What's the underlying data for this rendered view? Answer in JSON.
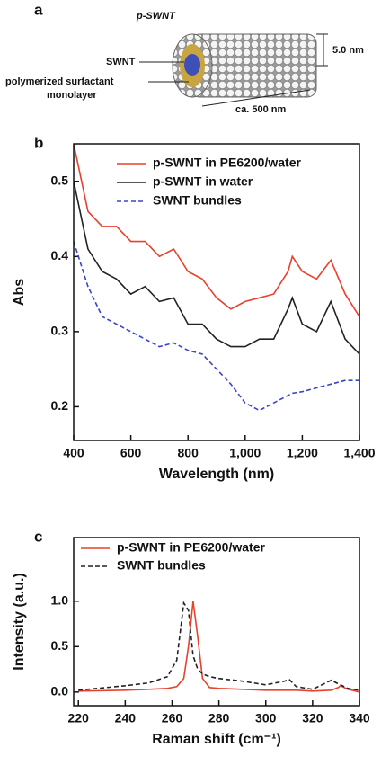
{
  "diagram": {
    "panel_label": "a",
    "title": "p-SWNT",
    "core_label": "SWNT",
    "shell_label_1": "polymerized surfactant",
    "shell_label_2": "monolayer",
    "diameter": "5.0 nm",
    "length": "ca. 500 nm"
  },
  "chart_data": [
    {
      "type": "line",
      "panel_label": "b",
      "xlabel": "Wavelength (nm)",
      "ylabel": "Abs",
      "xlim": [
        400,
        1400
      ],
      "ylim": [
        0.155,
        0.55
      ],
      "xticks": [
        400,
        600,
        800,
        {
          "value": 1000,
          "label": "1,000"
        },
        {
          "value": 1200,
          "label": "1,200"
        },
        {
          "value": 1400,
          "label": "1,400"
        }
      ],
      "yticks": [
        0.2,
        0.3,
        0.4,
        0.5
      ],
      "x": [
        400,
        450,
        500,
        550,
        600,
        650,
        700,
        750,
        800,
        850,
        900,
        950,
        1000,
        1050,
        1100,
        1150,
        1165,
        1200,
        1250,
        1300,
        1350,
        1400
      ],
      "series": [
        {
          "name": "p-SWNT in PE6200/water",
          "color": "#e8412c",
          "dashed": false,
          "values": [
            0.55,
            0.46,
            0.44,
            0.44,
            0.42,
            0.42,
            0.4,
            0.41,
            0.38,
            0.37,
            0.345,
            0.33,
            0.34,
            0.345,
            0.35,
            0.38,
            0.4,
            0.38,
            0.37,
            0.395,
            0.35,
            0.32
          ]
        },
        {
          "name": "p-SWNT in water",
          "color": "#222222",
          "dashed": false,
          "values": [
            0.5,
            0.41,
            0.38,
            0.37,
            0.35,
            0.36,
            0.34,
            0.345,
            0.31,
            0.31,
            0.29,
            0.28,
            0.28,
            0.29,
            0.29,
            0.33,
            0.345,
            0.31,
            0.3,
            0.34,
            0.29,
            0.27
          ]
        },
        {
          "name": "SWNT bundles",
          "color": "#3b45c8",
          "dashed": true,
          "values": [
            0.42,
            0.36,
            0.32,
            0.31,
            0.3,
            0.29,
            0.28,
            0.285,
            0.275,
            0.27,
            0.25,
            0.23,
            0.205,
            0.195,
            0.205,
            0.215,
            0.218,
            0.22,
            0.225,
            0.23,
            0.235,
            0.235
          ]
        }
      ]
    },
    {
      "type": "line",
      "panel_label": "c",
      "xlabel": "Raman shift (cm⁻¹)",
      "ylabel": "Intensity (a.u.)",
      "xlim": [
        218,
        340
      ],
      "ylim": [
        -0.15,
        1.7
      ],
      "xticks": [
        220,
        240,
        260,
        280,
        300,
        320,
        340
      ],
      "yticks": [
        {
          "value": 0,
          "label": "0.0"
        },
        {
          "value": 0.5,
          "label": "0.5"
        },
        {
          "value": 1,
          "label": "1.0"
        }
      ],
      "x": [
        220,
        240,
        250,
        258,
        262,
        265,
        267,
        269,
        271,
        273,
        276,
        280,
        290,
        300,
        308,
        310,
        313,
        320,
        328,
        331,
        332,
        335,
        340
      ],
      "series": [
        {
          "name": "p-SWNT in PE6200/water",
          "color": "#e8412c",
          "dashed": false,
          "values": [
            0.01,
            0.02,
            0.03,
            0.04,
            0.06,
            0.15,
            0.5,
            1.0,
            0.6,
            0.15,
            0.05,
            0.04,
            0.03,
            0.02,
            0.02,
            0.02,
            0.02,
            0.01,
            0.02,
            0.05,
            0.07,
            0.03,
            0.0
          ]
        },
        {
          "name": "SWNT bundles",
          "color": "#222222",
          "dashed": true,
          "values": [
            0.02,
            0.07,
            0.1,
            0.17,
            0.35,
            0.98,
            0.9,
            0.4,
            0.25,
            0.2,
            0.17,
            0.15,
            0.12,
            0.08,
            0.12,
            0.14,
            0.06,
            0.03,
            0.13,
            0.09,
            0.08,
            0.04,
            0.02
          ]
        }
      ]
    }
  ]
}
